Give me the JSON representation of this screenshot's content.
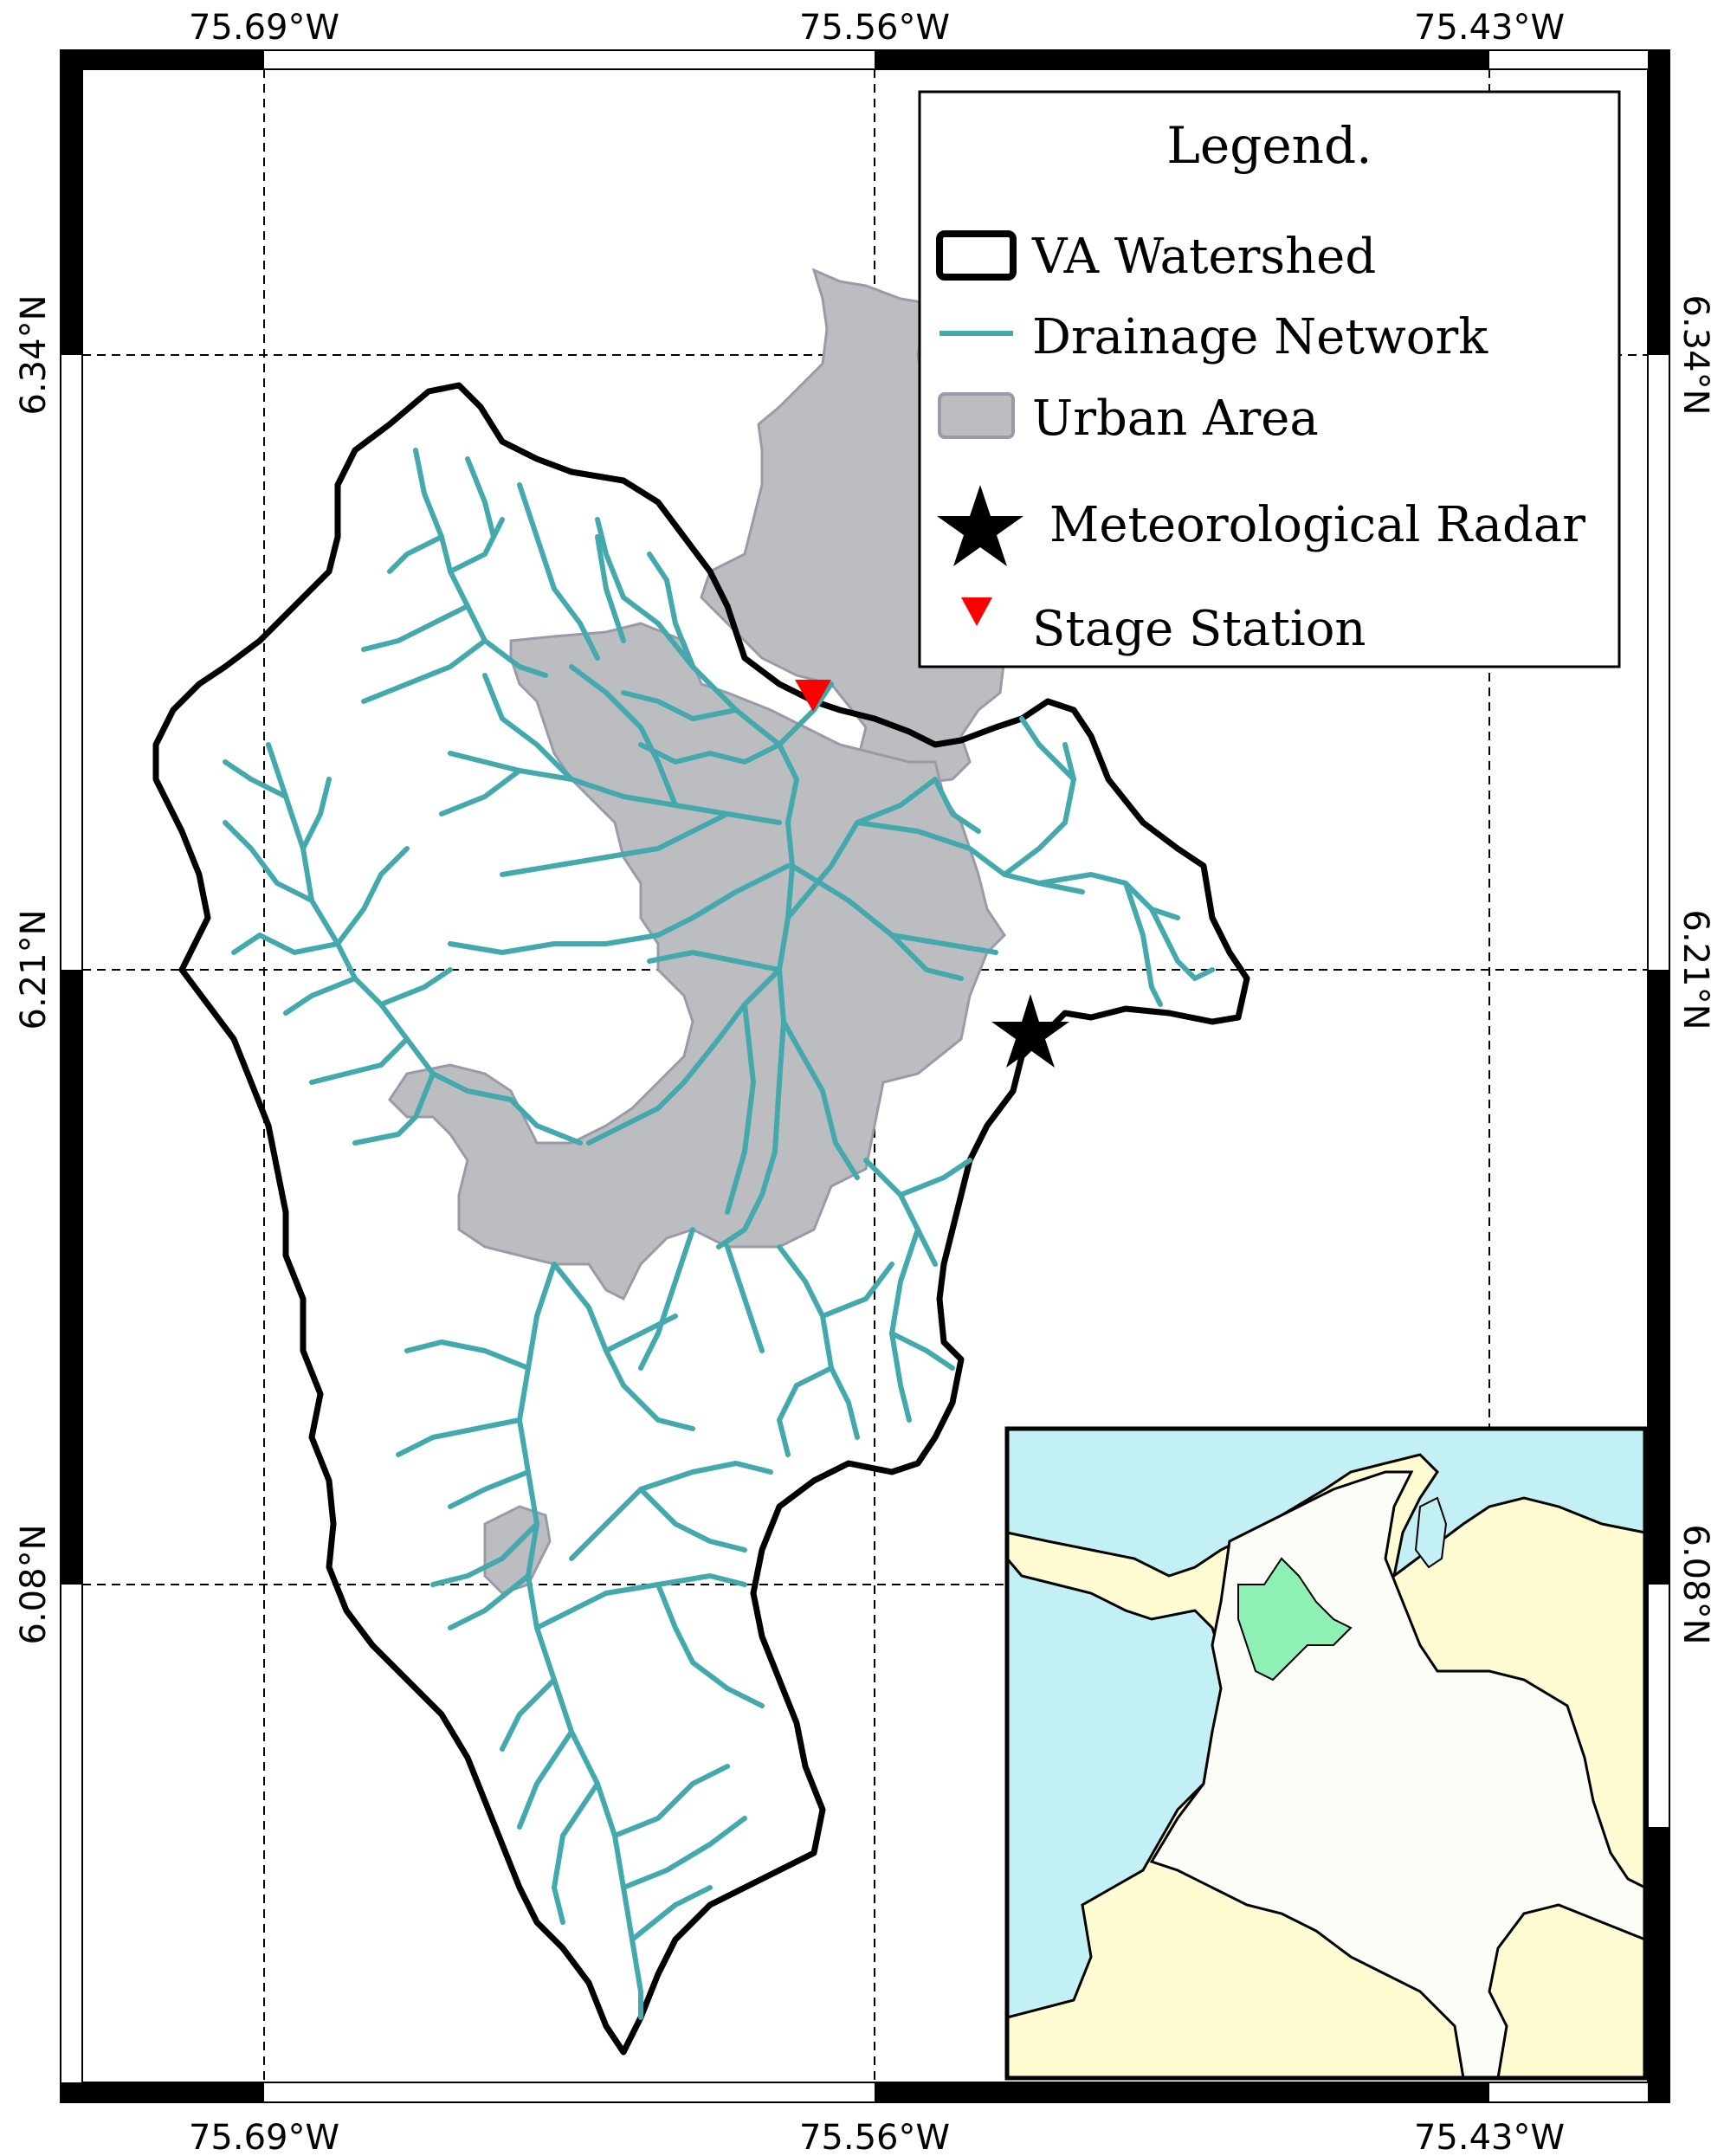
{
  "axes": {
    "lon_ticks": [
      "75.69°W",
      "75.56°W",
      "75.43°W"
    ],
    "lat_ticks": [
      "6.34°N",
      "6.21°N",
      "6.08°N"
    ]
  },
  "legend": {
    "title": "Legend.",
    "items": [
      {
        "label": "VA Watershed",
        "symbol": "outline-rect",
        "color": "#000000"
      },
      {
        "label": "Drainage Network",
        "symbol": "line",
        "color": "#44a9ad"
      },
      {
        "label": "Urban Area",
        "symbol": "filled-rect",
        "color": "#bcbdc1"
      },
      {
        "label": "Meteorological Radar",
        "symbol": "star",
        "color": "#000000"
      },
      {
        "label": "Stage Station",
        "symbol": "triangle-down",
        "color": "#ff0000"
      }
    ]
  },
  "colors": {
    "watershed": "#000000",
    "drainage": "#44a9ad",
    "urban": "#bcbdc1",
    "urban_edge": "#9a9aa8",
    "ocean": "#c3f0f5",
    "land": "#fffbd2",
    "colombia": "#fdfdf8",
    "antioquia": "#8ff0b4",
    "station": "#ff0000"
  },
  "inset": {
    "description_icon": "colombia-locator-map-icon"
  }
}
